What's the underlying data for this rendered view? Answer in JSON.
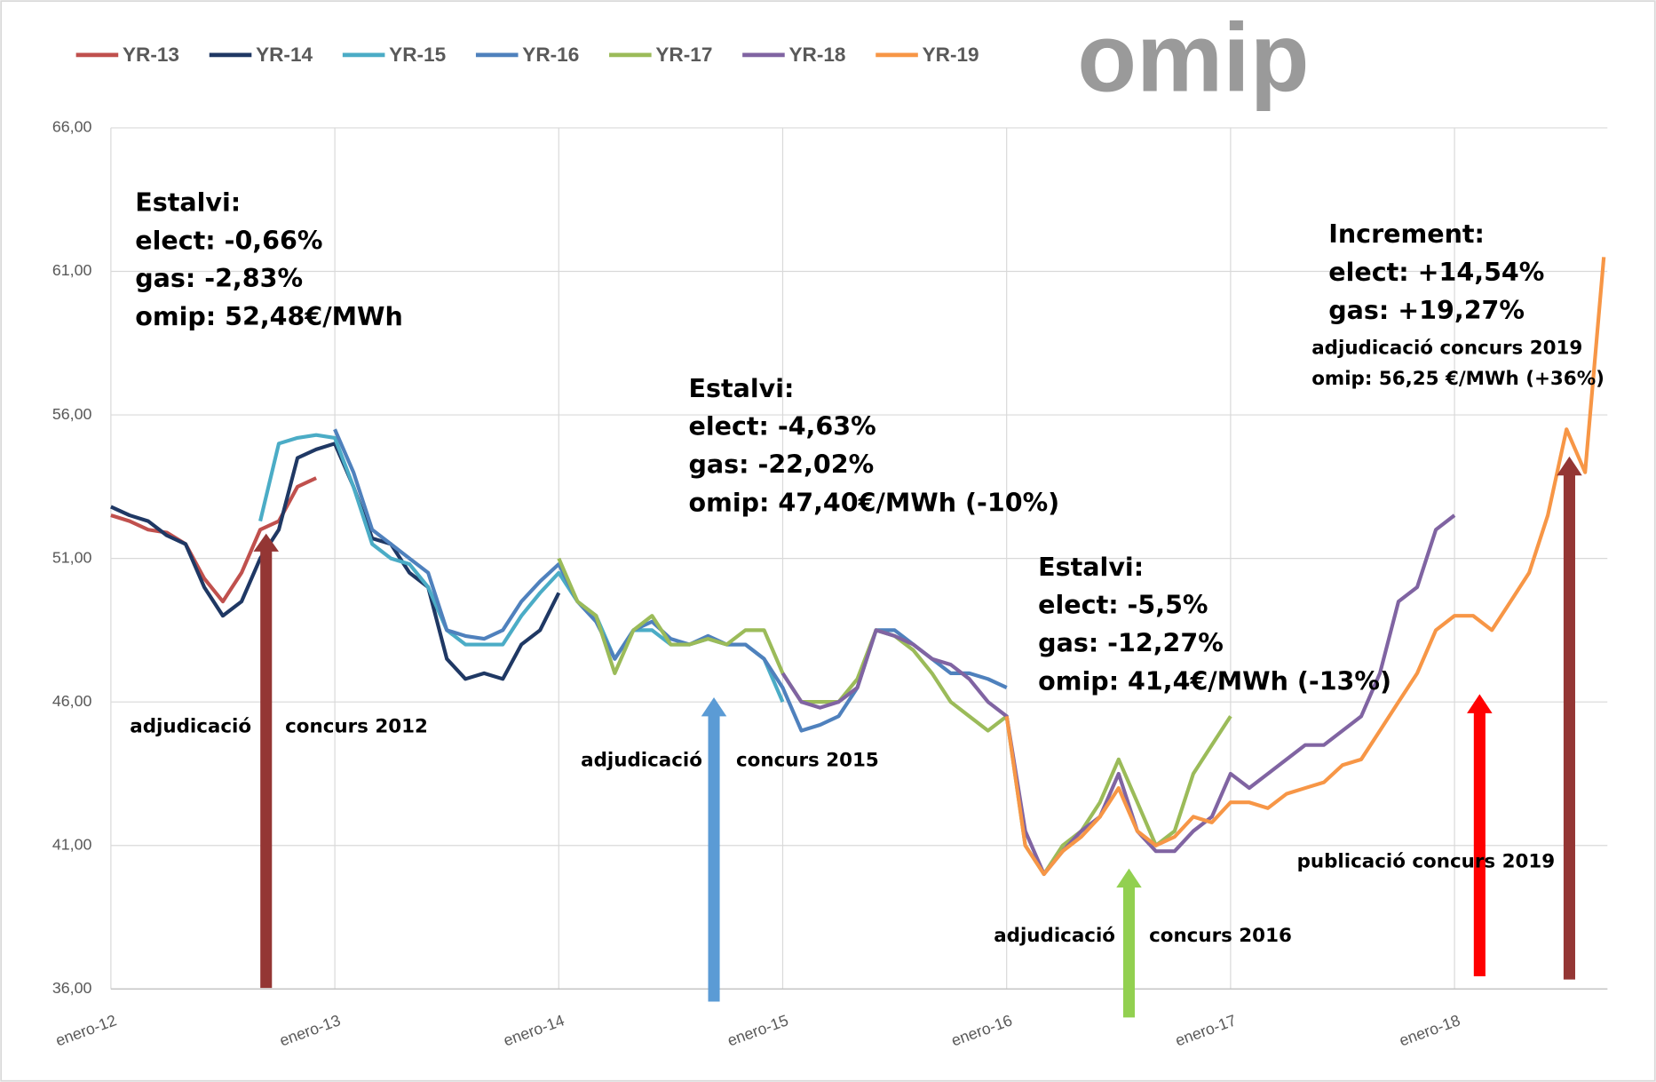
{
  "chart_data": {
    "type": "line",
    "logo": "omip",
    "x": [
      "2012-01",
      "2012-02",
      "2012-03",
      "2012-04",
      "2012-05",
      "2012-06",
      "2012-07",
      "2012-08",
      "2012-09",
      "2012-10",
      "2012-11",
      "2012-12",
      "2013-01",
      "2013-02",
      "2013-03",
      "2013-04",
      "2013-05",
      "2013-06",
      "2013-07",
      "2013-08",
      "2013-09",
      "2013-10",
      "2013-11",
      "2013-12",
      "2014-01",
      "2014-02",
      "2014-03",
      "2014-04",
      "2014-05",
      "2014-06",
      "2014-07",
      "2014-08",
      "2014-09",
      "2014-10",
      "2014-11",
      "2014-12",
      "2015-01",
      "2015-02",
      "2015-03",
      "2015-04",
      "2015-05",
      "2015-06",
      "2015-07",
      "2015-08",
      "2015-09",
      "2015-10",
      "2015-11",
      "2015-12",
      "2016-01",
      "2016-02",
      "2016-03",
      "2016-04",
      "2016-05",
      "2016-06",
      "2016-07",
      "2016-08",
      "2016-09",
      "2016-10",
      "2016-11",
      "2016-12",
      "2017-01",
      "2017-02",
      "2017-03",
      "2017-04",
      "2017-05",
      "2017-06",
      "2017-07",
      "2017-08",
      "2017-09",
      "2017-10",
      "2017-11",
      "2017-12",
      "2018-01",
      "2018-02",
      "2018-03",
      "2018-04",
      "2018-05",
      "2018-06",
      "2018-07",
      "2018-08",
      "2018-09"
    ],
    "xticks": [
      {
        "value": "2012-01",
        "label": "enero-12"
      },
      {
        "value": "2013-01",
        "label": "enero-13"
      },
      {
        "value": "2014-01",
        "label": "enero-14"
      },
      {
        "value": "2015-01",
        "label": "enero-15"
      },
      {
        "value": "2016-01",
        "label": "enero-16"
      },
      {
        "value": "2017-01",
        "label": "enero-17"
      },
      {
        "value": "2018-01",
        "label": "enero-18"
      }
    ],
    "ylim": [
      36,
      66
    ],
    "yticks": [
      {
        "value": 36,
        "label": "36,00"
      },
      {
        "value": 41,
        "label": "41,00"
      },
      {
        "value": 46,
        "label": "46,00"
      },
      {
        "value": 51,
        "label": "51,00"
      },
      {
        "value": 56,
        "label": "56,00"
      },
      {
        "value": 61,
        "label": "61,00"
      },
      {
        "value": 66,
        "label": "66,00"
      }
    ],
    "grid": true,
    "legend": "top-left",
    "series": [
      {
        "name": "YR-13",
        "color": "#c0504d",
        "values": [
          52.5,
          52.3,
          52.0,
          51.9,
          51.5,
          50.3,
          49.5,
          50.5,
          52.0,
          52.3,
          53.5,
          53.8,
          null,
          null,
          null,
          null,
          null,
          null,
          null,
          null,
          null,
          null,
          null,
          null,
          null,
          null,
          null,
          null,
          null,
          null,
          null,
          null,
          null,
          null,
          null,
          null,
          null,
          null,
          null,
          null,
          null,
          null,
          null,
          null,
          null,
          null,
          null,
          null,
          null,
          null,
          null,
          null,
          null,
          null,
          null,
          null,
          null,
          null,
          null,
          null,
          null,
          null,
          null,
          null,
          null,
          null,
          null,
          null,
          null,
          null,
          null,
          null,
          null,
          null,
          null,
          null,
          null,
          null,
          null,
          null,
          null
        ]
      },
      {
        "name": "YR-14",
        "color": "#1f3864",
        "values": [
          52.8,
          52.5,
          52.3,
          51.8,
          51.5,
          50.0,
          49.0,
          49.5,
          51.0,
          52.0,
          54.5,
          54.8,
          55.0,
          53.5,
          51.7,
          51.5,
          50.5,
          50.0,
          47.5,
          46.8,
          47.0,
          46.8,
          48.0,
          48.5,
          49.8,
          null,
          null,
          null,
          null,
          null,
          null,
          null,
          null,
          null,
          null,
          null,
          null,
          null,
          null,
          null,
          null,
          null,
          null,
          null,
          null,
          null,
          null,
          null,
          null,
          null,
          null,
          null,
          null,
          null,
          null,
          null,
          null,
          null,
          null,
          null,
          null,
          null,
          null,
          null,
          null,
          null,
          null,
          null,
          null,
          null,
          null,
          null,
          null,
          null,
          null,
          null,
          null,
          null,
          null,
          null,
          null
        ]
      },
      {
        "name": "YR-15",
        "color": "#4bacc6",
        "values": [
          null,
          null,
          null,
          null,
          null,
          null,
          null,
          null,
          52.3,
          55.0,
          55.2,
          55.3,
          55.2,
          53.5,
          51.5,
          51.0,
          50.8,
          50.0,
          48.5,
          48.0,
          48.0,
          48.0,
          49.0,
          49.8,
          50.5,
          49.5,
          49.0,
          47.5,
          48.5,
          48.5,
          48.0,
          48.0,
          48.2,
          48.0,
          48.0,
          47.5,
          46.0,
          null,
          null,
          null,
          null,
          null,
          null,
          null,
          null,
          null,
          null,
          null,
          null,
          null,
          null,
          null,
          null,
          null,
          null,
          null,
          null,
          null,
          null,
          null,
          null,
          null,
          null,
          null,
          null,
          null,
          null,
          null,
          null,
          null,
          null,
          null,
          null,
          null,
          null,
          null,
          null,
          null,
          null,
          null,
          null
        ]
      },
      {
        "name": "YR-16",
        "color": "#4f81bd",
        "values": [
          null,
          null,
          null,
          null,
          null,
          null,
          null,
          null,
          null,
          null,
          null,
          null,
          55.5,
          54.0,
          52.0,
          51.5,
          51.0,
          50.5,
          48.5,
          48.3,
          48.2,
          48.5,
          49.5,
          50.2,
          50.8,
          49.5,
          48.8,
          47.5,
          48.5,
          48.8,
          48.2,
          48.0,
          48.3,
          48.0,
          48.0,
          47.5,
          46.5,
          45.0,
          45.2,
          45.5,
          46.5,
          48.5,
          48.5,
          48.0,
          47.5,
          47.0,
          47.0,
          46.8,
          46.5,
          null,
          null,
          null,
          null,
          null,
          null,
          null,
          null,
          null,
          null,
          null,
          null,
          null,
          null,
          null,
          null,
          null,
          null,
          null,
          null,
          null,
          null,
          null,
          null,
          null,
          null,
          null,
          null,
          null,
          null,
          null,
          null
        ]
      },
      {
        "name": "YR-17",
        "color": "#9bbb59",
        "values": [
          null,
          null,
          null,
          null,
          null,
          null,
          null,
          null,
          null,
          null,
          null,
          null,
          null,
          null,
          null,
          null,
          null,
          null,
          null,
          null,
          null,
          null,
          null,
          null,
          51.0,
          49.5,
          49.0,
          47.0,
          48.5,
          49.0,
          48.0,
          48.0,
          48.2,
          48.0,
          48.5,
          48.5,
          47.0,
          46.0,
          46.0,
          46.0,
          46.8,
          48.5,
          48.3,
          47.8,
          47.0,
          46.0,
          45.5,
          45.0,
          45.5,
          41.0,
          40.0,
          41.0,
          41.5,
          42.5,
          44.0,
          42.5,
          41.0,
          41.5,
          43.5,
          44.5,
          45.5,
          null,
          null,
          null,
          null,
          null,
          null,
          null,
          null,
          null,
          null,
          null,
          null,
          null,
          null,
          null,
          null,
          null,
          null,
          null,
          null
        ]
      },
      {
        "name": "YR-18",
        "color": "#8064a2",
        "values": [
          null,
          null,
          null,
          null,
          null,
          null,
          null,
          null,
          null,
          null,
          null,
          null,
          null,
          null,
          null,
          null,
          null,
          null,
          null,
          null,
          null,
          null,
          null,
          null,
          null,
          null,
          null,
          null,
          null,
          null,
          null,
          null,
          null,
          null,
          null,
          null,
          47.0,
          46.0,
          45.8,
          46.0,
          46.5,
          48.5,
          48.3,
          48.0,
          47.5,
          47.3,
          46.8,
          46.0,
          45.5,
          41.5,
          40.0,
          40.8,
          41.5,
          42.0,
          43.5,
          41.5,
          40.8,
          40.8,
          41.5,
          42.0,
          43.5,
          43.0,
          43.5,
          44.0,
          44.5,
          44.5,
          45.0,
          45.5,
          47.0,
          49.5,
          50.0,
          52.0,
          52.5,
          null,
          null,
          null,
          null,
          null,
          null,
          null,
          null
        ]
      },
      {
        "name": "YR-19",
        "color": "#f79646",
        "values": [
          null,
          null,
          null,
          null,
          null,
          null,
          null,
          null,
          null,
          null,
          null,
          null,
          null,
          null,
          null,
          null,
          null,
          null,
          null,
          null,
          null,
          null,
          null,
          null,
          null,
          null,
          null,
          null,
          null,
          null,
          null,
          null,
          null,
          null,
          null,
          null,
          null,
          null,
          null,
          null,
          null,
          null,
          null,
          null,
          null,
          null,
          null,
          null,
          45.5,
          41.0,
          40.0,
          40.8,
          41.3,
          42.0,
          43.0,
          41.5,
          41.0,
          41.3,
          42.0,
          41.8,
          42.5,
          42.5,
          42.3,
          42.8,
          43.0,
          43.2,
          43.8,
          44.0,
          45.0,
          46.0,
          47.0,
          48.5,
          49.0,
          49.0,
          48.5,
          49.5,
          50.5,
          52.5,
          55.5,
          54.0,
          61.5
        ]
      }
    ],
    "annotations": [
      {
        "lines": [
          "Estalvi:",
          "elect: -0,66%",
          "gas: -2,83%",
          "omip: 52,48€/MWh"
        ]
      },
      {
        "lines": [
          "Estalvi:",
          "elect: -4,63%",
          "gas: -22,02%",
          "omip: 47,40€/MWh (-10%)"
        ]
      },
      {
        "lines": [
          "Estalvi:",
          "elect: -5,5%",
          "gas: -12,27%",
          "omip: 41,4€/MWh (-13%)"
        ]
      },
      {
        "lines": [
          "Increment:",
          "elect: +14,54%",
          "gas:    +19,27%",
          "adjudicació concurs 2019",
          "omip: 56,25 €/MWh (+36%)"
        ]
      },
      {
        "lines": [
          "adjudicació",
          "concurs 2012"
        ]
      },
      {
        "lines": [
          "adjudicació",
          "concurs 2015"
        ]
      },
      {
        "lines": [
          "adjudicació",
          "concurs 2016"
        ]
      },
      {
        "lines": [
          "publicació concurs 2019"
        ]
      }
    ]
  }
}
